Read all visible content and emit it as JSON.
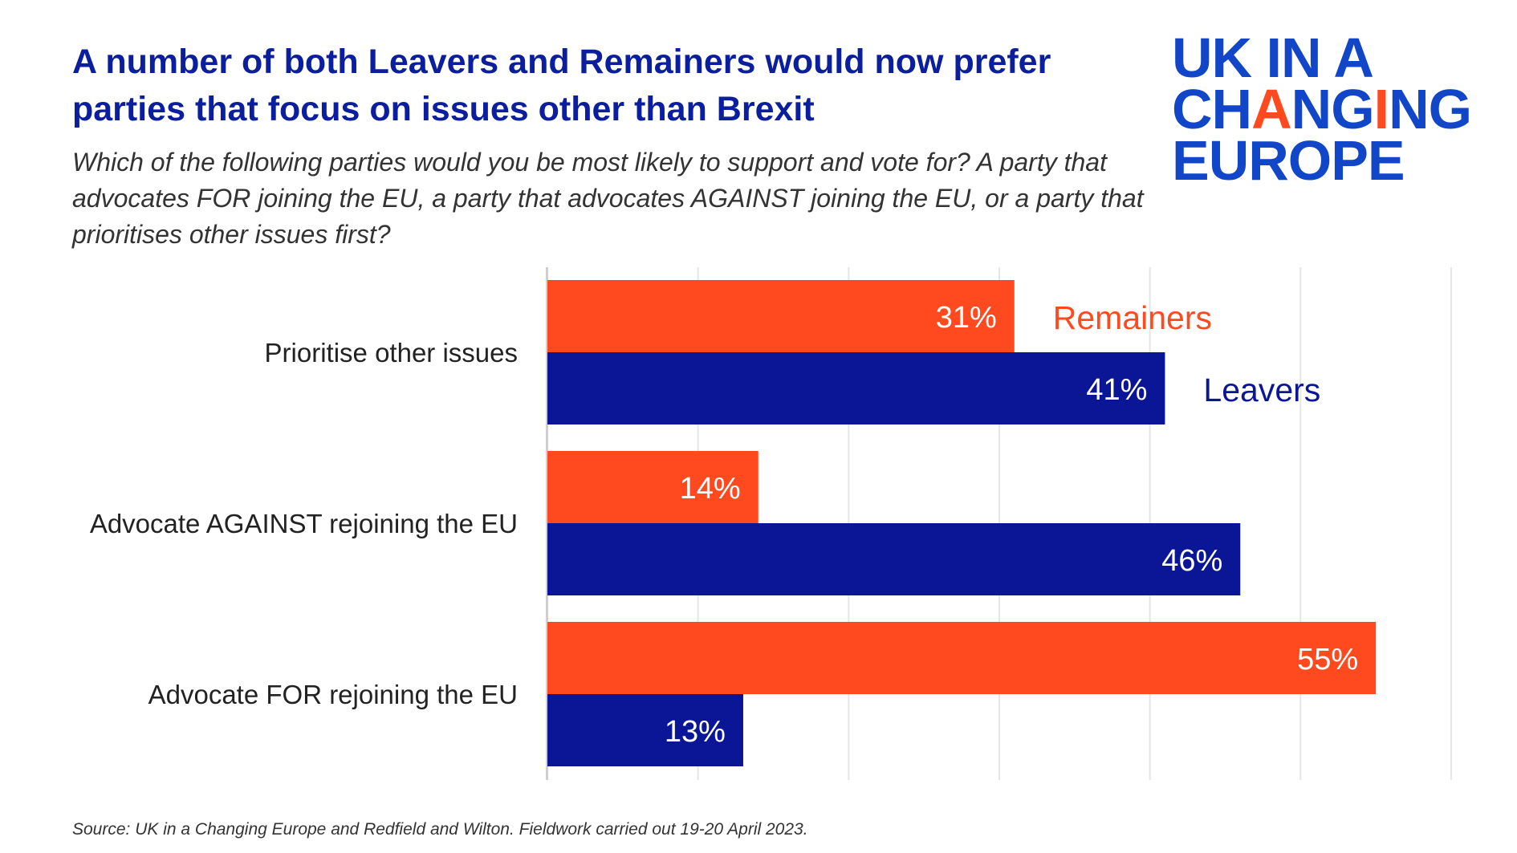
{
  "title": "A number of both Leavers and Remainers would now prefer parties that focus on issues other than Brexit",
  "subtitle": "Which of the following parties would you be most likely to support and vote for? A party that advocates FOR joining the EU, a party that advocates AGAINST joining the EU, or a party that prioritises other issues first?",
  "logo": {
    "line1": "UK IN A",
    "line2_pre": "CH",
    "line2_a": "A",
    "line2_mid": "NG",
    "line2_i": "I",
    "line2_post": "NG",
    "line3": "EUROPE"
  },
  "source": "Source: UK in a Changing Europe and Redfield and Wilton. Fieldwork carried out 19-20 April 2023.",
  "colors": {
    "remainers": "#ff4a20",
    "leavers": "#0b1696",
    "title": "#0b1f9e",
    "logo": "#1146c8"
  },
  "chart_data": {
    "type": "bar",
    "orientation": "horizontal",
    "categories": [
      "Prioritise other issues",
      "Advocate AGAINST rejoining the EU",
      "Advocate FOR rejoining the EU"
    ],
    "series": [
      {
        "name": "Remainers",
        "values": [
          31,
          14,
          55
        ],
        "labels": [
          "31%",
          "14%",
          "55%"
        ]
      },
      {
        "name": "Leavers",
        "values": [
          41,
          46,
          13
        ],
        "labels": [
          "41%",
          "46%",
          "13%"
        ]
      }
    ],
    "xlim": [
      0,
      60
    ],
    "grid": true,
    "legend": "inline next to first category bars"
  }
}
